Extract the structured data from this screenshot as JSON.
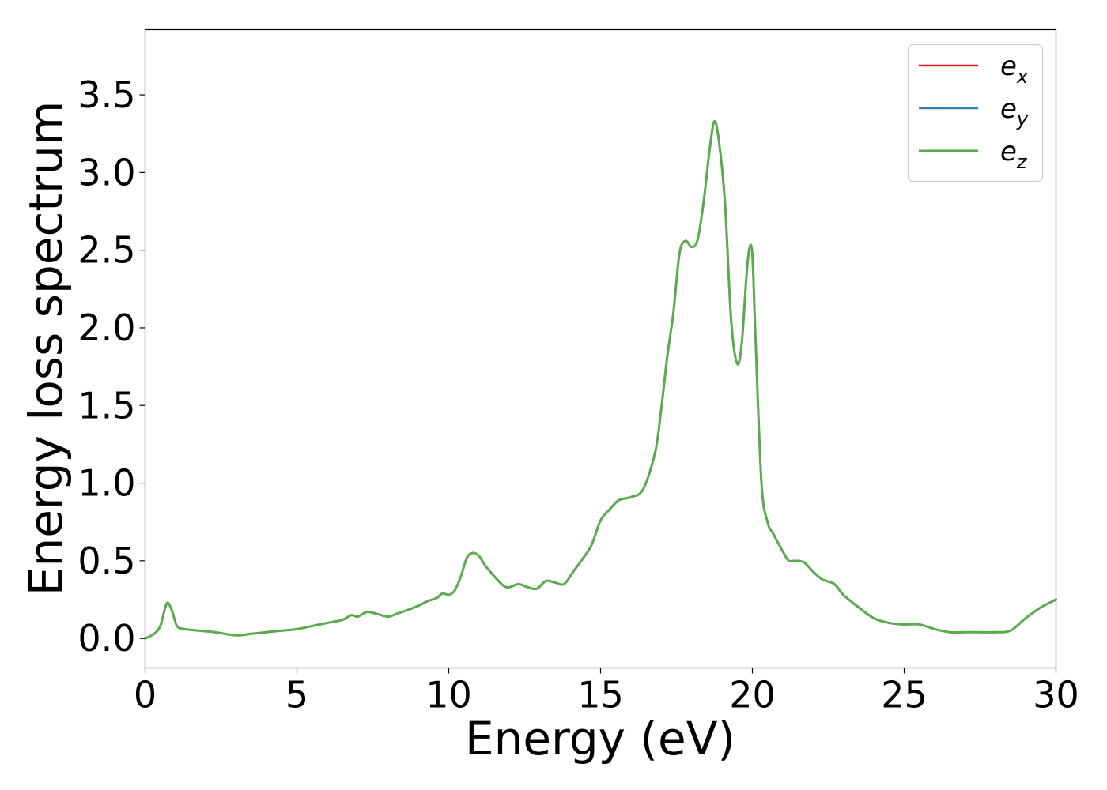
{
  "chart_data": {
    "type": "line",
    "title": "",
    "xlabel": "Energy (eV)",
    "ylabel": "Energy loss spectrum",
    "xlim": [
      0,
      30
    ],
    "ylim": [
      -0.19,
      3.92
    ],
    "xticks": [
      0,
      5,
      10,
      15,
      20,
      25,
      30
    ],
    "xtick_labels": [
      "0",
      "5",
      "10",
      "15",
      "20",
      "25",
      "30"
    ],
    "yticks": [
      0.0,
      0.5,
      1.0,
      1.5,
      2.0,
      2.5,
      3.0,
      3.5
    ],
    "ytick_labels": [
      "0.0",
      "0.5",
      "1.0",
      "1.5",
      "2.0",
      "2.5",
      "3.0",
      "3.5"
    ],
    "grid": false,
    "legend_position": "top-right",
    "x": [
      0,
      0.3,
      0.5,
      0.65,
      0.75,
      0.9,
      1.05,
      1.3,
      1.8,
      2.3,
      3.0,
      3.5,
      4.0,
      4.5,
      5.0,
      5.5,
      6.0,
      6.5,
      6.8,
      7.0,
      7.3,
      7.6,
      8.0,
      8.3,
      8.6,
      9.0,
      9.3,
      9.6,
      9.8,
      10.0,
      10.2,
      10.4,
      10.6,
      10.8,
      11.0,
      11.2,
      11.5,
      11.8,
      12.0,
      12.3,
      12.6,
      12.9,
      13.2,
      13.5,
      13.8,
      14.1,
      14.4,
      14.7,
      15.0,
      15.3,
      15.6,
      16.0,
      16.4,
      16.8,
      17.0,
      17.2,
      17.4,
      17.6,
      17.8,
      18.0,
      18.2,
      18.4,
      18.6,
      18.75,
      18.9,
      19.1,
      19.3,
      19.5,
      19.65,
      19.8,
      19.9,
      20.0,
      20.1,
      20.3,
      20.5,
      20.7,
      21.0,
      21.2,
      21.4,
      21.7,
      22.0,
      22.3,
      22.7,
      23.0,
      23.5,
      24.0,
      24.5,
      25.0,
      25.5,
      26.0,
      26.5,
      27.0,
      27.5,
      28.0,
      28.5,
      29.0,
      29.5,
      30.0
    ],
    "series": [
      {
        "name": "e_x",
        "color": "#e41a1c",
        "width": 2.5,
        "values": [
          0.0,
          0.03,
          0.08,
          0.19,
          0.23,
          0.17,
          0.08,
          0.06,
          0.05,
          0.04,
          0.02,
          0.03,
          0.04,
          0.05,
          0.06,
          0.08,
          0.1,
          0.12,
          0.15,
          0.14,
          0.17,
          0.16,
          0.14,
          0.16,
          0.18,
          0.21,
          0.24,
          0.26,
          0.29,
          0.28,
          0.31,
          0.4,
          0.52,
          0.55,
          0.53,
          0.47,
          0.4,
          0.34,
          0.33,
          0.35,
          0.33,
          0.32,
          0.37,
          0.36,
          0.35,
          0.43,
          0.51,
          0.6,
          0.76,
          0.83,
          0.89,
          0.91,
          0.96,
          1.2,
          1.48,
          1.82,
          2.1,
          2.48,
          2.56,
          2.52,
          2.57,
          2.82,
          3.16,
          3.33,
          3.2,
          2.8,
          2.05,
          1.77,
          1.9,
          2.32,
          2.51,
          2.47,
          1.95,
          1.0,
          0.75,
          0.67,
          0.56,
          0.5,
          0.5,
          0.49,
          0.43,
          0.38,
          0.35,
          0.28,
          0.2,
          0.13,
          0.1,
          0.09,
          0.09,
          0.06,
          0.04,
          0.04,
          0.04,
          0.04,
          0.05,
          0.13,
          0.2,
          0.25
        ]
      },
      {
        "name": "e_y",
        "color": "#377eb8",
        "width": 2.5,
        "values": [
          0.0,
          0.03,
          0.08,
          0.19,
          0.23,
          0.17,
          0.08,
          0.06,
          0.05,
          0.04,
          0.02,
          0.03,
          0.04,
          0.05,
          0.06,
          0.08,
          0.1,
          0.12,
          0.15,
          0.14,
          0.17,
          0.16,
          0.14,
          0.16,
          0.18,
          0.21,
          0.24,
          0.26,
          0.29,
          0.28,
          0.31,
          0.4,
          0.52,
          0.55,
          0.53,
          0.47,
          0.4,
          0.34,
          0.33,
          0.35,
          0.33,
          0.32,
          0.37,
          0.36,
          0.35,
          0.43,
          0.51,
          0.6,
          0.76,
          0.83,
          0.89,
          0.91,
          0.96,
          1.2,
          1.48,
          1.82,
          2.1,
          2.48,
          2.56,
          2.52,
          2.57,
          2.82,
          3.16,
          3.33,
          3.2,
          2.8,
          2.05,
          1.77,
          1.9,
          2.32,
          2.51,
          2.47,
          1.95,
          1.0,
          0.75,
          0.67,
          0.56,
          0.5,
          0.5,
          0.49,
          0.43,
          0.38,
          0.35,
          0.28,
          0.2,
          0.13,
          0.1,
          0.09,
          0.09,
          0.06,
          0.04,
          0.04,
          0.04,
          0.04,
          0.05,
          0.13,
          0.2,
          0.25
        ]
      },
      {
        "name": "e_z",
        "color": "#5aaa4e",
        "width": 3,
        "values": [
          0.0,
          0.03,
          0.08,
          0.19,
          0.23,
          0.17,
          0.08,
          0.06,
          0.05,
          0.04,
          0.02,
          0.03,
          0.04,
          0.05,
          0.06,
          0.08,
          0.1,
          0.12,
          0.15,
          0.14,
          0.17,
          0.16,
          0.14,
          0.16,
          0.18,
          0.21,
          0.24,
          0.26,
          0.29,
          0.28,
          0.31,
          0.4,
          0.52,
          0.55,
          0.53,
          0.47,
          0.4,
          0.34,
          0.33,
          0.35,
          0.33,
          0.32,
          0.37,
          0.36,
          0.35,
          0.43,
          0.51,
          0.6,
          0.76,
          0.83,
          0.89,
          0.91,
          0.96,
          1.2,
          1.48,
          1.82,
          2.1,
          2.48,
          2.56,
          2.52,
          2.57,
          2.82,
          3.16,
          3.33,
          3.2,
          2.8,
          2.05,
          1.77,
          1.9,
          2.32,
          2.51,
          2.47,
          1.95,
          1.0,
          0.75,
          0.67,
          0.56,
          0.5,
          0.5,
          0.49,
          0.43,
          0.38,
          0.35,
          0.28,
          0.2,
          0.13,
          0.1,
          0.09,
          0.09,
          0.06,
          0.04,
          0.04,
          0.04,
          0.04,
          0.05,
          0.13,
          0.2,
          0.25
        ]
      }
    ],
    "legend": [
      {
        "base": "e",
        "sub": "x"
      },
      {
        "base": "e",
        "sub": "y"
      },
      {
        "base": "e",
        "sub": "z"
      }
    ]
  }
}
